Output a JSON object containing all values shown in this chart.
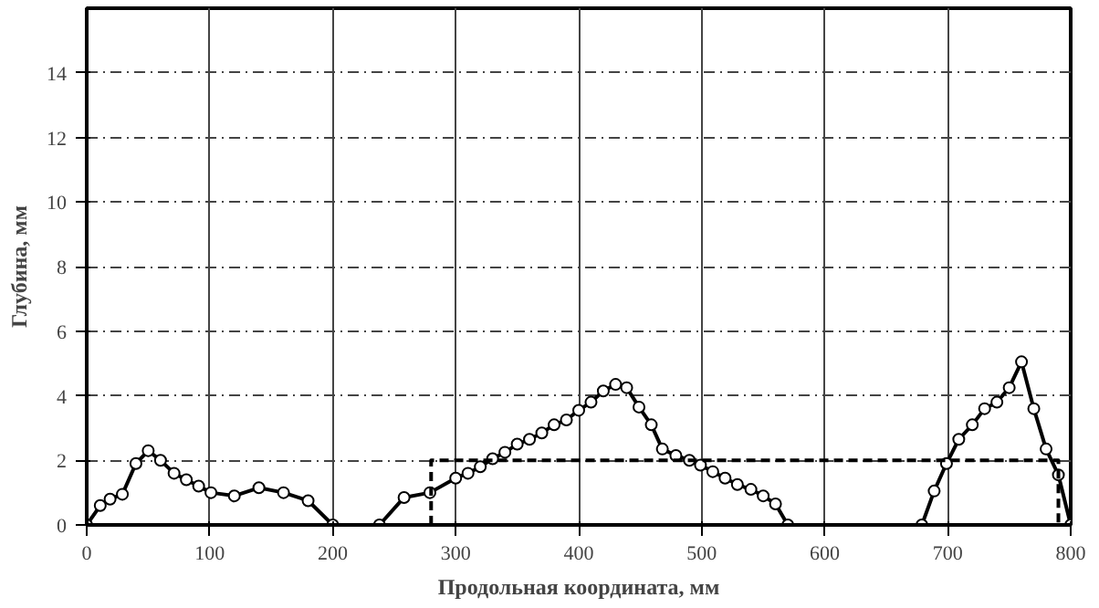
{
  "chart_data": {
    "type": "line",
    "xlabel": "Продольная координата, мм",
    "ylabel": "Глубина, мм",
    "xlim": [
      0,
      800
    ],
    "ylim": [
      0,
      16
    ],
    "xticks": [
      0,
      100,
      200,
      300,
      400,
      500,
      600,
      700,
      800
    ],
    "yticks": [
      0,
      2,
      4,
      6,
      8,
      10,
      12,
      14
    ],
    "grid": true,
    "series": [
      {
        "color": "#000000",
        "marker": "circle",
        "line_style": "solid",
        "x": [
          0,
          11,
          19,
          29,
          40,
          50,
          60,
          71,
          81,
          91,
          101,
          120,
          140,
          160,
          180,
          200,
          238,
          258,
          279,
          300,
          310,
          320,
          330,
          340,
          350,
          360,
          370,
          380,
          390,
          400,
          410,
          420,
          430,
          439,
          449,
          459,
          468,
          479,
          490,
          499,
          509,
          519,
          529,
          540,
          550,
          560,
          570,
          679,
          689,
          699,
          709,
          720,
          730,
          740,
          750,
          760,
          770,
          780,
          790,
          800
        ],
        "values": [
          0,
          0.6,
          0.8,
          0.95,
          1.9,
          2.3,
          2.0,
          1.6,
          1.4,
          1.2,
          1.0,
          0.9,
          1.15,
          1.0,
          0.75,
          0,
          0,
          0.85,
          1.0,
          1.45,
          1.6,
          1.8,
          2.05,
          2.25,
          2.5,
          2.65,
          2.85,
          3.1,
          3.25,
          3.55,
          3.8,
          4.15,
          4.35,
          4.25,
          3.65,
          3.1,
          2.35,
          2.15,
          2.0,
          1.85,
          1.65,
          1.45,
          1.25,
          1.1,
          0.9,
          0.65,
          0,
          0,
          1.05,
          1.9,
          2.65,
          3.1,
          3.6,
          3.8,
          4.25,
          5.05,
          3.6,
          2.35,
          1.55,
          0
        ]
      },
      {
        "color": "#000000",
        "marker": "none",
        "line_style": "dashed",
        "x": [
          280,
          280,
          790,
          790
        ],
        "values": [
          0,
          2,
          2,
          0
        ]
      }
    ]
  }
}
